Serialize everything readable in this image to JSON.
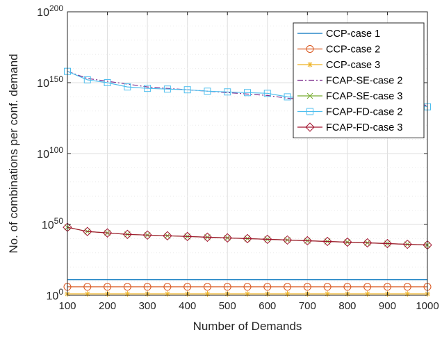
{
  "chart_data": {
    "type": "line",
    "title": "",
    "xlabel": "Number of Demands",
    "ylabel": "No. of combinations per conf. demand",
    "xlim": [
      100,
      1000
    ],
    "ylim_log10": [
      0,
      200
    ],
    "y_scale": "log",
    "grid": true,
    "legend_position": "top-right",
    "x_ticks": [
      100,
      200,
      300,
      400,
      500,
      600,
      700,
      800,
      900,
      1000
    ],
    "y_ticks": [
      {
        "base": "10",
        "exp": "0",
        "log10": 0
      },
      {
        "base": "10",
        "exp": "50",
        "log10": 50
      },
      {
        "base": "10",
        "exp": "100",
        "log10": 100
      },
      {
        "base": "10",
        "exp": "150",
        "log10": 150
      },
      {
        "base": "10",
        "exp": "200",
        "log10": 200
      }
    ],
    "x": [
      100,
      150,
      200,
      250,
      300,
      350,
      400,
      450,
      500,
      550,
      600,
      650,
      700,
      750,
      800,
      850,
      900,
      950,
      1000
    ],
    "series": [
      {
        "name": "CCP-case 1",
        "color": "#0072bd",
        "marker": "none",
        "dash": "solid",
        "log10_values": [
          11,
          11,
          11,
          11,
          11,
          11,
          11,
          11,
          11,
          11,
          11,
          11,
          11,
          11,
          11,
          11,
          11,
          11,
          11
        ]
      },
      {
        "name": "CCP-case 2",
        "color": "#d95319",
        "marker": "circle",
        "dash": "solid",
        "log10_values": [
          6,
          6,
          6,
          6,
          6,
          6,
          6,
          6,
          6,
          6,
          6,
          6,
          6,
          6,
          6,
          6,
          6,
          6,
          6
        ]
      },
      {
        "name": "CCP-case 3",
        "color": "#edb120",
        "marker": "asterisk",
        "dash": "solid",
        "log10_values": [
          1,
          1,
          1,
          1,
          1,
          1,
          1,
          1,
          1,
          1,
          1,
          1,
          1,
          1,
          1,
          1,
          1,
          1,
          1
        ]
      },
      {
        "name": "FCAP-SE-case 2",
        "color": "#7e2f8e",
        "marker": "none",
        "dash": "dashdot",
        "log10_values": [
          158,
          153,
          151,
          149,
          147,
          146,
          145,
          144,
          143,
          142,
          141,
          139,
          138,
          137,
          136,
          136,
          135,
          135,
          134
        ]
      },
      {
        "name": "FCAP-SE-case 3",
        "color": "#77ac30",
        "marker": "x",
        "dash": "solid",
        "log10_values": [
          48,
          45,
          44,
          43,
          42.5,
          42,
          41.5,
          41,
          40.5,
          40,
          39.5,
          39,
          38.5,
          38,
          37.5,
          37,
          36.5,
          36,
          35.5
        ]
      },
      {
        "name": "FCAP-FD-case 2",
        "color": "#4dbeee",
        "marker": "square",
        "dash": "solid",
        "log10_values": [
          158,
          152,
          150,
          147,
          146,
          145.5,
          145,
          144,
          143.5,
          143,
          142.5,
          140,
          139,
          138.5,
          137.5,
          137,
          136.5,
          136,
          133
        ]
      },
      {
        "name": "FCAP-FD-case 3",
        "color": "#a2142f",
        "marker": "diamond",
        "dash": "solid",
        "log10_values": [
          48,
          45,
          44,
          43,
          42.5,
          42,
          41.5,
          41,
          40.5,
          40,
          39.5,
          39,
          38.5,
          38,
          37.5,
          37,
          36.5,
          36,
          35.5
        ]
      }
    ]
  }
}
